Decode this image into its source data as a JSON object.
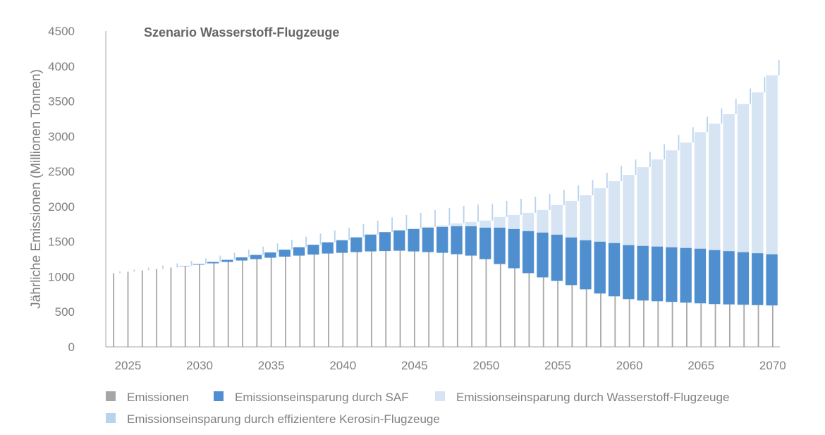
{
  "chart_data": {
    "type": "bar",
    "stacked": true,
    "title": "Szenario Wasserstoff-Flugzeuge",
    "ylabel": "Jährliche Emissionen (Millionen Tonnen)",
    "xlabel": "",
    "ylim": [
      0,
      4500
    ],
    "yticks": [
      0,
      500,
      1000,
      1500,
      2000,
      2500,
      3000,
      3500,
      4000,
      4500
    ],
    "xticks": [
      2025,
      2030,
      2035,
      2040,
      2045,
      2050,
      2055,
      2060,
      2065,
      2070
    ],
    "grid": false,
    "legend_position": "bottom",
    "categories": [
      2024,
      2025,
      2026,
      2027,
      2028,
      2029,
      2030,
      2031,
      2032,
      2033,
      2034,
      2035,
      2036,
      2037,
      2038,
      2039,
      2040,
      2041,
      2042,
      2043,
      2044,
      2045,
      2046,
      2047,
      2048,
      2049,
      2050,
      2051,
      2052,
      2053,
      2054,
      2055,
      2056,
      2057,
      2058,
      2059,
      2060,
      2061,
      2062,
      2063,
      2064,
      2065,
      2066,
      2067,
      2068,
      2069,
      2070
    ],
    "series": [
      {
        "name": "Emissionen",
        "color": "#a6a6a6",
        "values": [
          1050,
          1070,
          1090,
          1110,
          1130,
          1150,
          1170,
          1190,
          1210,
          1230,
          1250,
          1270,
          1285,
          1300,
          1315,
          1330,
          1340,
          1350,
          1360,
          1365,
          1370,
          1360,
          1350,
          1340,
          1320,
          1300,
          1250,
          1180,
          1120,
          1050,
          990,
          940,
          880,
          820,
          760,
          720,
          680,
          660,
          650,
          640,
          630,
          620,
          610,
          605,
          600,
          595,
          590
        ]
      },
      {
        "name": "Emissionseinsparung durch SAF",
        "color": "#4f8fd0",
        "values": [
          0,
          0,
          0,
          0,
          0,
          5,
          10,
          20,
          30,
          45,
          60,
          75,
          100,
          120,
          140,
          160,
          180,
          210,
          240,
          270,
          290,
          320,
          350,
          370,
          400,
          420,
          450,
          520,
          560,
          600,
          640,
          660,
          680,
          700,
          740,
          760,
          770,
          780,
          780,
          780,
          780,
          780,
          770,
          760,
          750,
          740,
          730
        ]
      },
      {
        "name": "Emissionseinsparung durch Wasserstoff-Flugzeuge",
        "color": "#d7e4f3",
        "values": [
          0,
          0,
          0,
          0,
          0,
          0,
          0,
          0,
          0,
          0,
          0,
          0,
          0,
          0,
          0,
          0,
          0,
          0,
          0,
          0,
          0,
          0,
          10,
          20,
          40,
          60,
          100,
          150,
          200,
          260,
          320,
          420,
          520,
          640,
          760,
          880,
          1000,
          1120,
          1240,
          1380,
          1500,
          1660,
          1800,
          1950,
          2110,
          2290,
          2550
        ]
      },
      {
        "name": "Emissionseinsparung durch effizientere Kerosin-Flugzeuge",
        "color": "#b7d3ee",
        "values": [
          25,
          30,
          40,
          50,
          60,
          70,
          80,
          90,
          100,
          110,
          120,
          130,
          140,
          150,
          160,
          170,
          180,
          190,
          200,
          210,
          220,
          230,
          240,
          250,
          250,
          250,
          240,
          230,
          230,
          230,
          230,
          220,
          220,
          220,
          220,
          220,
          220,
          220,
          220,
          220,
          220,
          220,
          220,
          220,
          220,
          220,
          220
        ]
      }
    ]
  }
}
